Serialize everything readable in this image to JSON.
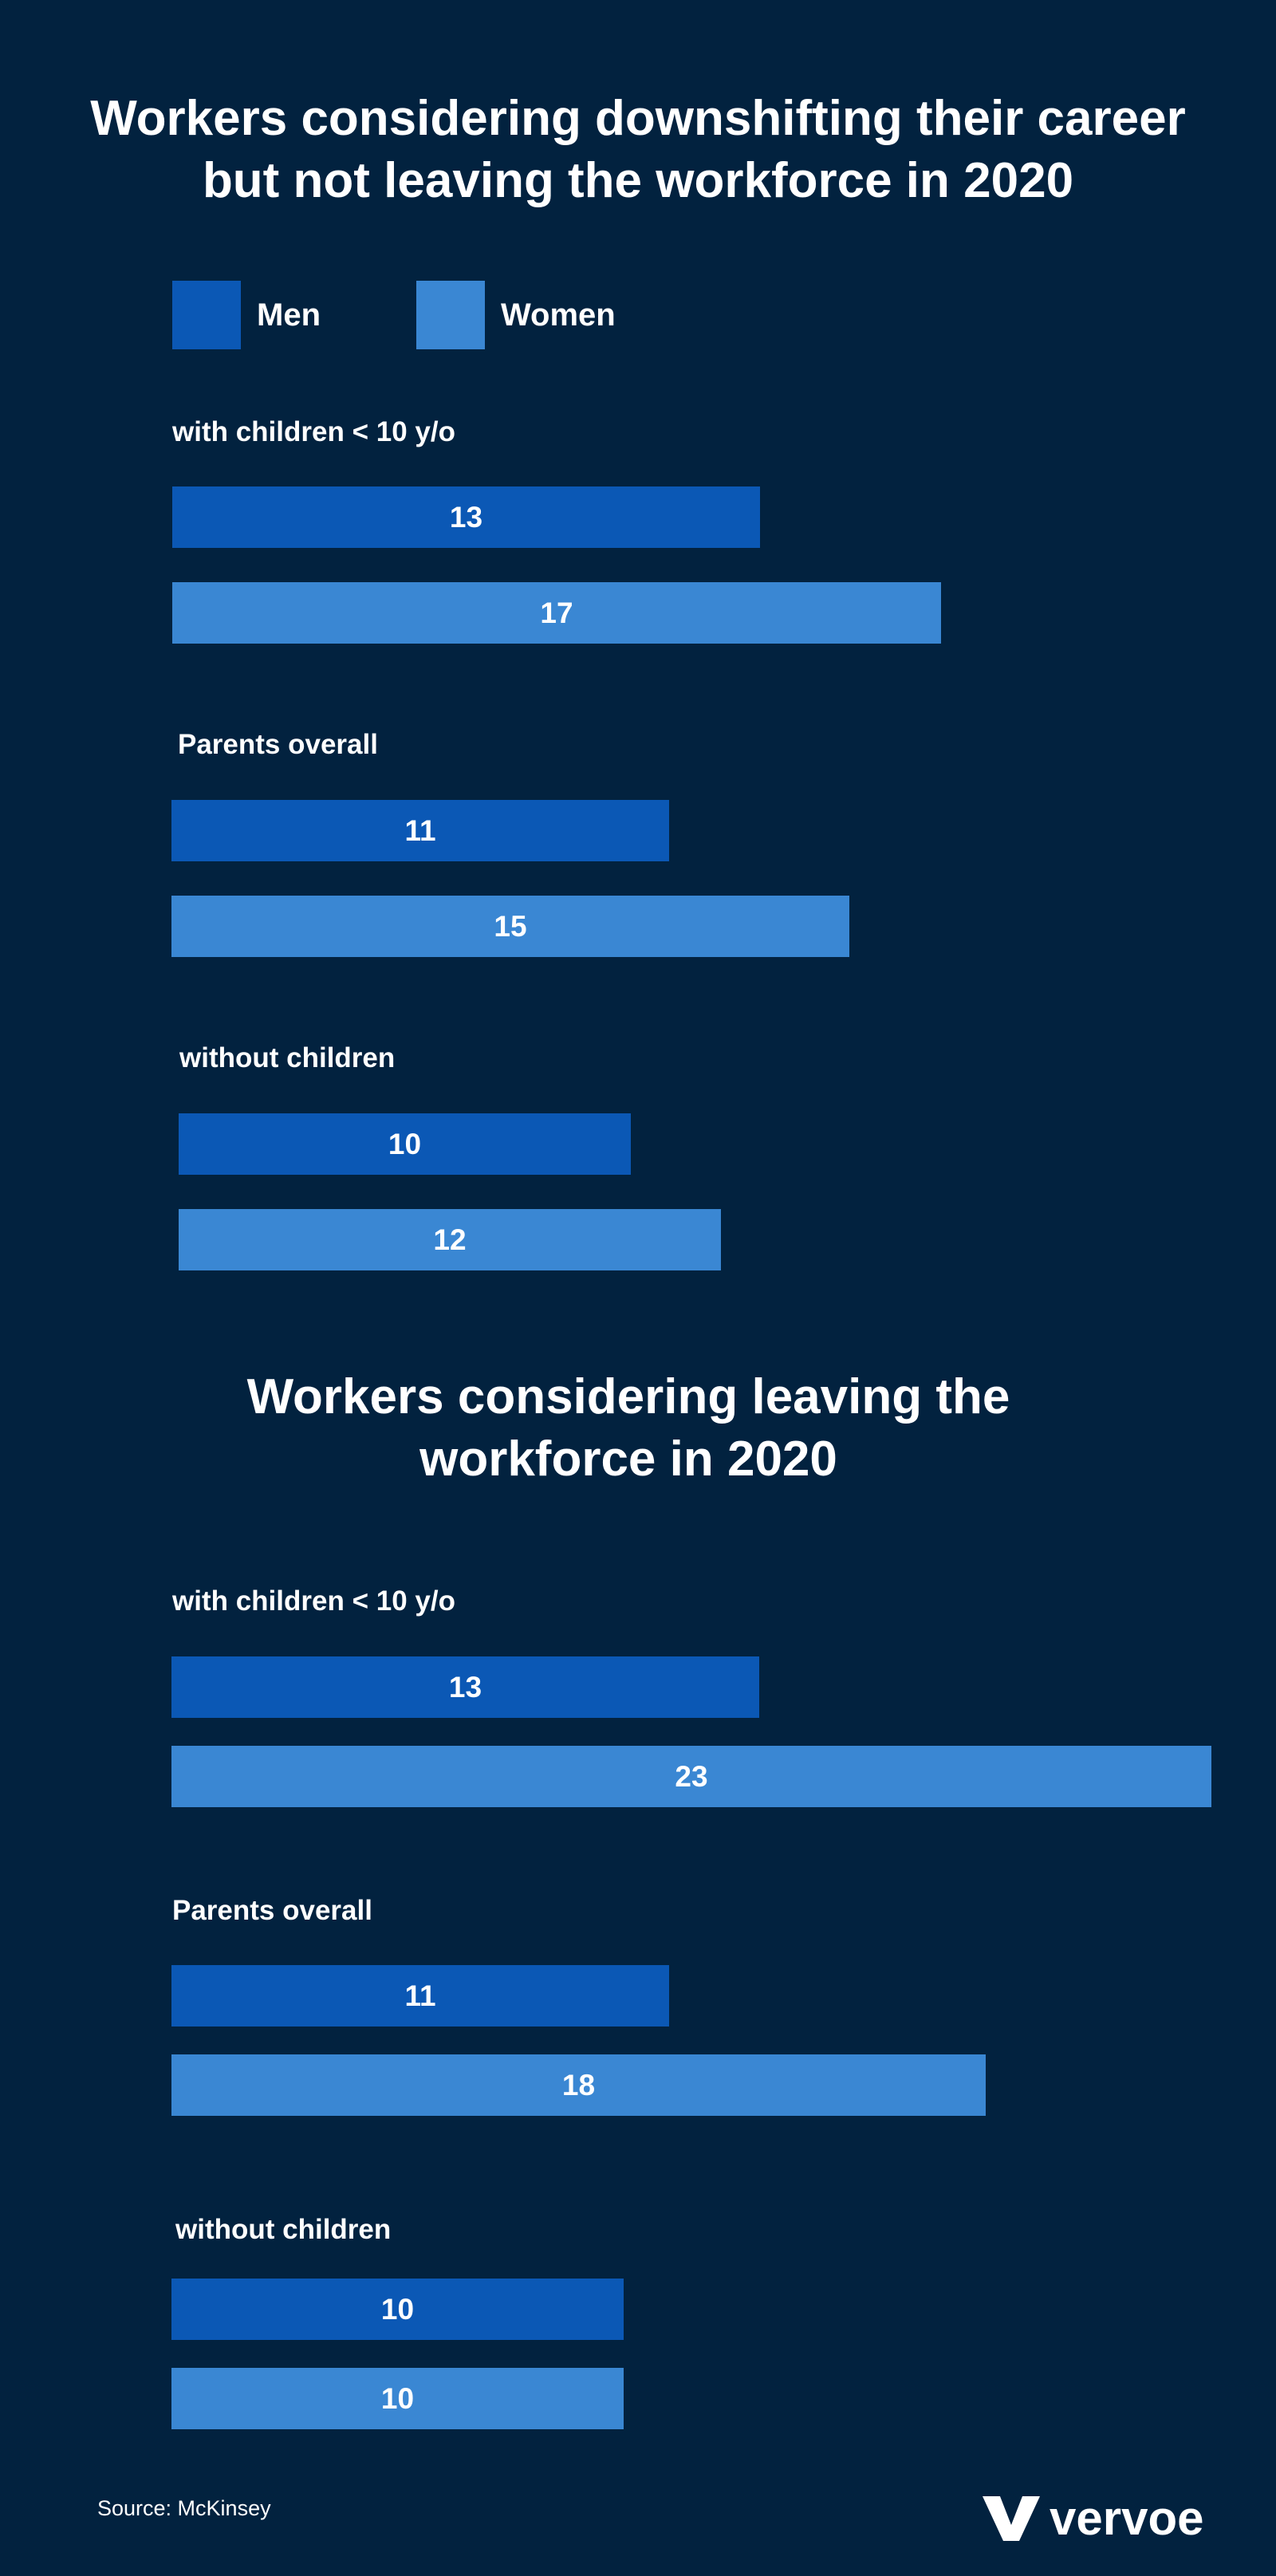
{
  "colors": {
    "background": "#02223f",
    "men": "#0b58b5",
    "women": "#3a87d3",
    "text": "#ffffff"
  },
  "legend": {
    "men": "Men",
    "women": "Women"
  },
  "chart_data": [
    {
      "type": "bar",
      "orientation": "horizontal",
      "title_lines": [
        "Workers considering downshifting their career",
        "but not leaving the workforce in 2020"
      ],
      "categories": [
        "with children < 10 y/o",
        "Parents overall",
        "without children"
      ],
      "series": [
        {
          "name": "Men",
          "values": [
            13,
            11,
            10
          ]
        },
        {
          "name": "Women",
          "values": [
            17,
            15,
            12
          ]
        }
      ],
      "legend_position": "top-left",
      "grid": false
    },
    {
      "type": "bar",
      "orientation": "horizontal",
      "title_lines": [
        "Workers considering leaving the",
        "workforce in 2020"
      ],
      "categories": [
        "with children < 10 y/o",
        "Parents overall",
        "without children"
      ],
      "series": [
        {
          "name": "Men",
          "values": [
            13,
            11,
            10
          ]
        },
        {
          "name": "Women",
          "values": [
            23,
            18,
            10
          ]
        }
      ],
      "grid": false
    }
  ],
  "source": "Source: McKinsey",
  "brand": {
    "name": "vervoe",
    "icon": "vervoe-logo-icon"
  }
}
